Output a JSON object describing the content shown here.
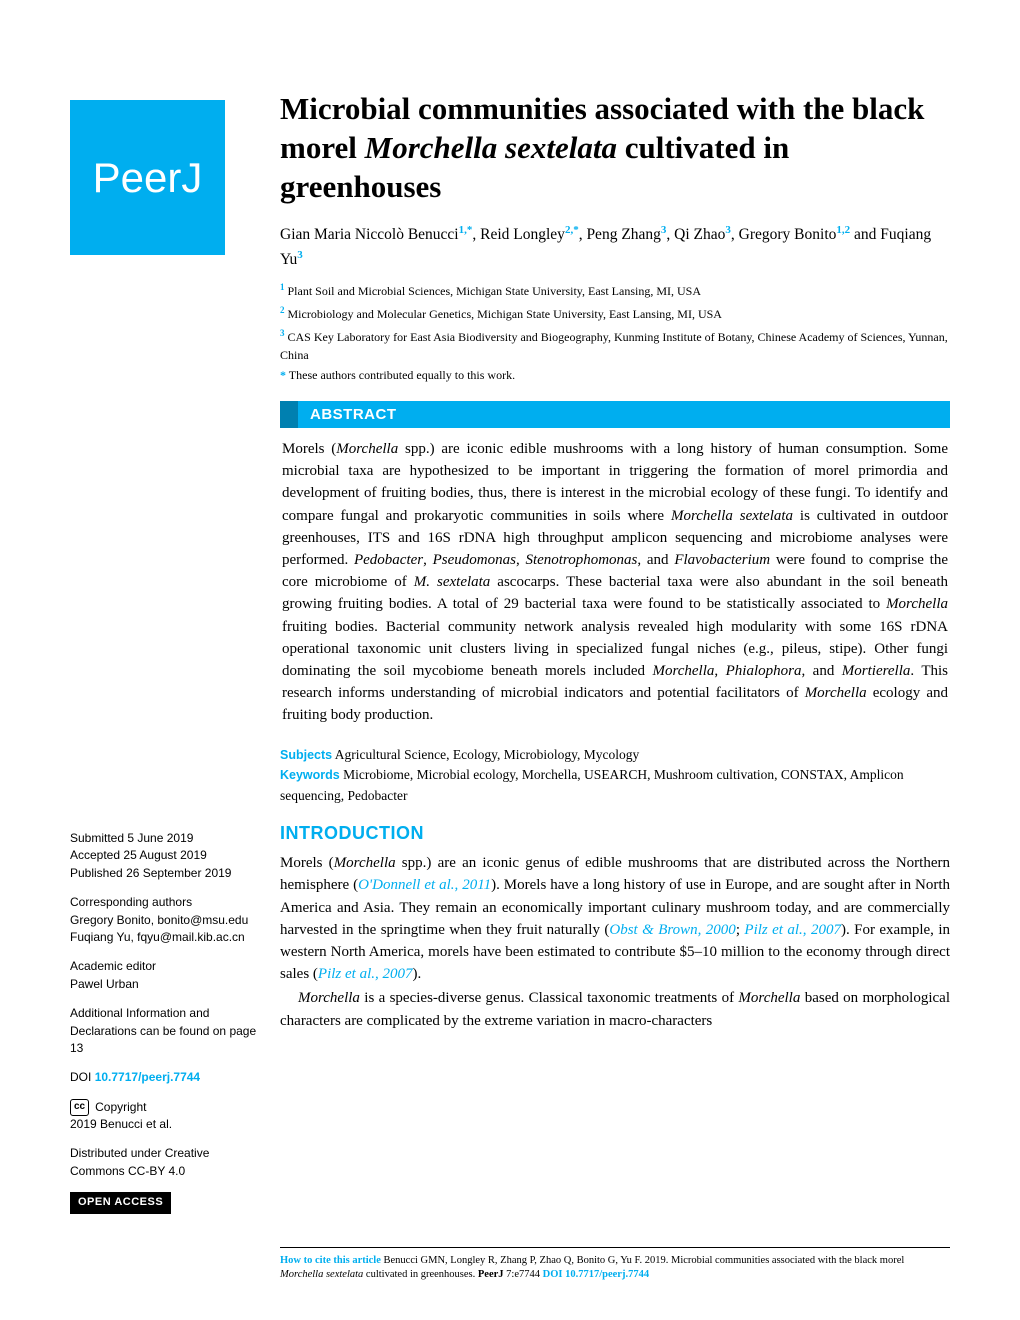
{
  "branding": {
    "logo_text": "PeerJ",
    "brand_color": "#00aeef"
  },
  "title": {
    "pre": "Microbial communities associated with the black morel ",
    "italic": "Morchella sextelata",
    "post": " cultivated in greenhouses"
  },
  "authors_html": "Gian Maria Niccolò Benucci<sup>1,*</sup>, Reid Longley<sup>2,*</sup>, Peng Zhang<sup>3</sup>, Qi Zhao<sup>3</sup>, Gregory Bonito<sup>1,2</sup> and Fuqiang Yu<sup>3</sup>",
  "affiliations": [
    {
      "num": "1",
      "text": "Plant Soil and Microbial Sciences, Michigan State University, East Lansing, MI, USA"
    },
    {
      "num": "2",
      "text": "Microbiology and Molecular Genetics, Michigan State University, East Lansing, MI, USA"
    },
    {
      "num": "3",
      "text": "CAS Key Laboratory for East Asia Biodiversity and Biogeography, Kunming Institute of Botany, Chinese Academy of Sciences, Yunnan, China"
    }
  ],
  "equal_contrib": "These authors contributed equally to this work.",
  "abstract": {
    "heading": "ABSTRACT",
    "text": "Morels (<i>Morchella</i> spp.) are iconic edible mushrooms with a long history of human consumption. Some microbial taxa are hypothesized to be important in triggering the formation of morel primordia and development of fruiting bodies, thus, there is interest in the microbial ecology of these fungi. To identify and compare fungal and prokaryotic communities in soils where <i>Morchella sextelata</i> is cultivated in outdoor greenhouses, ITS and 16S rDNA high throughput amplicon sequencing and microbiome analyses were performed. <i>Pedobacter</i>, <i>Pseudomonas</i>, <i>Stenotrophomonas</i>, and <i>Flavobacterium</i> were found to comprise the core microbiome of <i>M. sextelata</i> ascocarps. These bacterial taxa were also abundant in the soil beneath growing fruiting bodies. A total of 29 bacterial taxa were found to be statistically associated to <i>Morchella</i> fruiting bodies. Bacterial community network analysis revealed high modularity with some 16S rDNA operational taxonomic unit clusters living in specialized fungal niches (e.g., pileus, stipe). Other fungi dominating the soil mycobiome beneath morels included <i>Morchella</i>, <i>Phialophora</i>, and <i>Mortierella</i>. This research informs understanding of microbial indicators and potential facilitators of <i>Morchella</i> ecology and fruiting body production."
  },
  "subjects": {
    "label": "Subjects",
    "text": "Agricultural Science, Ecology, Microbiology, Mycology"
  },
  "keywords": {
    "label": "Keywords",
    "text": "Microbiome, Microbial ecology, Morchella, USEARCH, Mushroom cultivation, CONSTAX, Amplicon sequencing, Pedobacter"
  },
  "introduction": {
    "heading": "INTRODUCTION",
    "paragraphs": [
      "Morels (<i>Morchella</i> spp.) are an iconic genus of edible mushrooms that are distributed across the Northern hemisphere (<span class='cite'>O'Donnell et al., 2011</span>). Morels have a long history of use in Europe, and are sought after in North America and Asia. They remain an economically important culinary mushroom today, and are commercially harvested in the springtime when they fruit naturally (<span class='cite'>Obst & Brown, 2000</span>; <span class='cite'>Pilz et al., 2007</span>). For example, in western North America, morels have been estimated to contribute $5–10 million to the economy through direct sales (<span class='cite'>Pilz et al., 2007</span>).",
      "<i>Morchella</i> is a species-diverse genus. Classical taxonomic treatments of <i>Morchella</i> based on morphological characters are complicated by the extreme variation in macro-characters"
    ]
  },
  "sidebar": {
    "submitted": {
      "label": "Submitted",
      "value": "5 June 2019"
    },
    "accepted": {
      "label": "Accepted",
      "value": "25 August 2019"
    },
    "published": {
      "label": "Published",
      "value": "26 September 2019"
    },
    "corresponding": {
      "label": "Corresponding authors",
      "lines": [
        "Gregory Bonito, bonito@msu.edu",
        "Fuqiang Yu, fqyu@mail.kib.ac.cn"
      ]
    },
    "editor": {
      "label": "Academic editor",
      "name": "Pawel Urban"
    },
    "additional": "Additional Information and Declarations can be found on page 13",
    "doi": {
      "label": "DOI",
      "value": "10.7717/peerj.7744"
    },
    "copyright": {
      "label": "Copyright",
      "value": "2019 Benucci et al."
    },
    "distributed": "Distributed under Creative Commons CC-BY 4.0",
    "open_access": "OPEN ACCESS"
  },
  "footer": {
    "how_label": "How to cite this article",
    "citation": "Benucci GMN, Longley R, Zhang P, Zhao Q, Bonito G, Yu F. 2019. Microbial communities associated with the black morel <i>Morchella sextelata</i> cultivated in greenhouses. <b>PeerJ</b> 7:e7744 ",
    "doi": "DOI 10.7717/peerj.7744"
  }
}
